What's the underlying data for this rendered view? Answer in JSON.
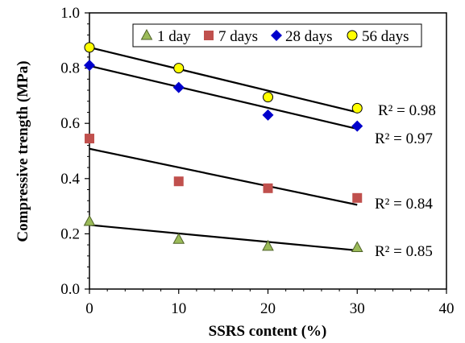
{
  "chart_data": {
    "type": "scatter",
    "xlabel": "SSRS content (%)",
    "ylabel": "Compressive trength (MPa)",
    "xlim": [
      0,
      40
    ],
    "ylim": [
      0.0,
      1.0
    ],
    "x_ticks": [
      0,
      10,
      20,
      30,
      40
    ],
    "x_tick_labels": [
      "0",
      "10",
      "20",
      "30",
      "40"
    ],
    "y_ticks": [
      0.0,
      0.2,
      0.4,
      0.6,
      0.8,
      1.0
    ],
    "y_tick_labels": [
      "0.0",
      "0.2",
      "0.4",
      "0.6",
      "0.8",
      "1.0"
    ],
    "grid": false,
    "legend_position": "top",
    "series": [
      {
        "name": "1 day",
        "marker": "triangle",
        "color": "#9bbb59",
        "x": [
          0,
          10,
          20,
          30
        ],
        "y": [
          0.245,
          0.18,
          0.155,
          0.15
        ],
        "trendline": {
          "x": [
            0,
            30
          ],
          "y": [
            0.232,
            0.14
          ]
        },
        "r2_label": "R² = 0.85"
      },
      {
        "name": "7 days",
        "marker": "square",
        "color": "#c0504d",
        "x": [
          0,
          10,
          20,
          30
        ],
        "y": [
          0.545,
          0.39,
          0.365,
          0.33
        ],
        "trendline": {
          "x": [
            0,
            30
          ],
          "y": [
            0.508,
            0.305
          ]
        },
        "r2_label": "R² = 0.84"
      },
      {
        "name": "28 days",
        "marker": "diamond",
        "color": "#0000cc",
        "x": [
          0,
          10,
          20,
          30
        ],
        "y": [
          0.81,
          0.73,
          0.63,
          0.59
        ],
        "trendline": {
          "x": [
            0,
            30
          ],
          "y": [
            0.808,
            0.58
          ]
        },
        "r2_label": "R² = 0.97"
      },
      {
        "name": "56 days",
        "marker": "circle",
        "color": "#ffff00",
        "x": [
          0,
          10,
          20,
          30
        ],
        "y": [
          0.875,
          0.8,
          0.695,
          0.655
        ],
        "trendline": {
          "x": [
            0,
            30
          ],
          "y": [
            0.875,
            0.64
          ]
        },
        "r2_label": "R² = 0.98"
      }
    ]
  }
}
